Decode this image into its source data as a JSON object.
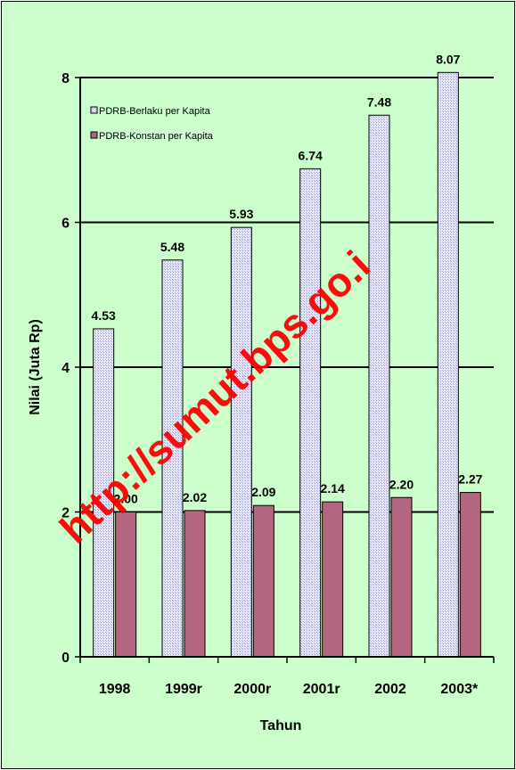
{
  "colors": {
    "background": "#ccffcc",
    "series_berlaku_fill": "#e6e6ff",
    "series_berlaku_hatch": "#9999cc",
    "series_konstan_fill": "#b36680",
    "watermark": "#ff0000"
  },
  "watermark": "http://sumut.bps.go.i",
  "chart_data": {
    "type": "bar",
    "title": "",
    "xlabel": "Tahun",
    "ylabel": "Nilai (Juta Rp)",
    "ylim": [
      0,
      8
    ],
    "yticks": [
      "0",
      "2",
      "4",
      "6",
      "8"
    ],
    "grid": true,
    "legend_position": "top-left",
    "categories": [
      "1998",
      "1999r",
      "2000r",
      "2001r",
      "2002",
      "2003*"
    ],
    "series": [
      {
        "name": "PDRB-Berlaku per Kapita",
        "values": [
          4.53,
          5.48,
          5.93,
          6.74,
          7.48,
          8.07
        ],
        "labels": [
          "4.53",
          "5.48",
          "5.93",
          "6.74",
          "7.48",
          "8.07"
        ]
      },
      {
        "name": "PDRB-Konstan per Kapita",
        "values": [
          2.0,
          2.02,
          2.09,
          2.14,
          2.2,
          2.27
        ],
        "labels": [
          "2.00",
          "2.02",
          "2.09",
          "2.14",
          "2.20",
          "2.27"
        ]
      }
    ]
  }
}
